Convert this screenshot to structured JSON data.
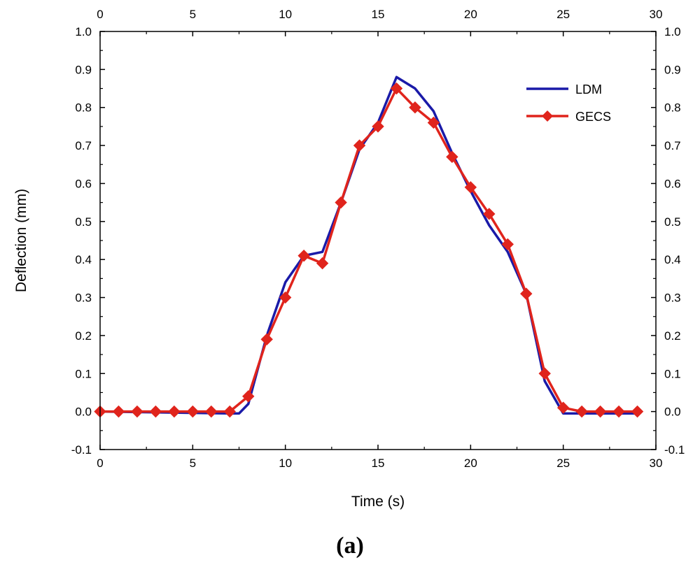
{
  "chart_data": {
    "type": "line",
    "caption": "(a)",
    "xlabel": "Time (s)",
    "ylabel": "Deflection (mm)",
    "xlim": [
      0,
      30
    ],
    "ylim": [
      -0.1,
      1.0
    ],
    "x_ticks": [
      "0",
      "5",
      "10",
      "15",
      "20",
      "25",
      "30"
    ],
    "y_ticks": [
      "-0.1",
      "0.0",
      "0.1",
      "0.2",
      "0.3",
      "0.4",
      "0.5",
      "0.6",
      "0.7",
      "0.8",
      "0.9",
      "1.0"
    ],
    "grid": false,
    "legend_position": "top-right",
    "series": [
      {
        "name": "LDM",
        "color": "#1a1aa8",
        "marker": "none",
        "x": [
          0,
          7,
          7.5,
          8,
          9,
          10,
          11,
          12,
          13,
          14,
          15,
          16,
          17,
          18,
          19,
          20,
          21,
          22,
          23,
          24,
          25,
          26,
          29
        ],
        "y": [
          0.0,
          -0.005,
          -0.005,
          0.02,
          0.2,
          0.34,
          0.41,
          0.42,
          0.55,
          0.69,
          0.76,
          0.88,
          0.85,
          0.79,
          0.68,
          0.58,
          0.49,
          0.42,
          0.31,
          0.08,
          -0.005,
          -0.005,
          -0.005
        ]
      },
      {
        "name": "GECS",
        "color": "#e0241c",
        "marker": "diamond",
        "x": [
          0,
          1,
          2,
          3,
          4,
          5,
          6,
          7,
          8,
          9,
          10,
          11,
          12,
          13,
          14,
          15,
          16,
          17,
          18,
          19,
          20,
          21,
          22,
          23,
          24,
          25,
          26,
          27,
          28,
          29
        ],
        "y": [
          0.0,
          0.0,
          0.0,
          0.0,
          0.0,
          0.0,
          0.0,
          0.0,
          0.04,
          0.19,
          0.3,
          0.41,
          0.39,
          0.55,
          0.7,
          0.75,
          0.85,
          0.8,
          0.76,
          0.67,
          0.59,
          0.52,
          0.44,
          0.31,
          0.1,
          0.01,
          0.0,
          0.0,
          0.0,
          0.0
        ]
      }
    ]
  }
}
